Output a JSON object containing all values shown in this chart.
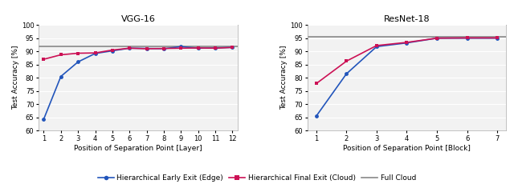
{
  "vgg16": {
    "title": "VGG-16",
    "xlabel": "Position of Separation Point [Layer]",
    "ylabel": "Test Accuracy [%]",
    "xlim": [
      1,
      12
    ],
    "ylim": [
      60,
      100
    ],
    "xticks": [
      1,
      2,
      3,
      4,
      5,
      6,
      7,
      8,
      9,
      10,
      11,
      12
    ],
    "yticks": [
      60,
      65,
      70,
      75,
      80,
      85,
      90,
      95,
      100
    ],
    "early_exit_x": [
      1,
      2,
      3,
      4,
      5,
      6,
      7,
      8,
      9,
      10,
      11,
      12
    ],
    "early_exit_y": [
      64.3,
      80.5,
      86.0,
      89.2,
      90.2,
      91.2,
      91.1,
      91.0,
      91.8,
      91.2,
      91.3,
      91.5
    ],
    "final_exit_x": [
      1,
      2,
      3,
      4,
      5,
      6,
      7,
      8,
      9,
      10,
      11,
      12
    ],
    "final_exit_y": [
      87.0,
      88.7,
      89.3,
      89.4,
      90.5,
      91.2,
      91.0,
      91.1,
      91.2,
      91.3,
      91.2,
      91.5
    ],
    "full_cloud": 91.8
  },
  "resnet18": {
    "title": "ResNet-18",
    "xlabel": "Position of Separation Point [Block]",
    "ylabel": "Test Accuracy [%]",
    "xlim": [
      1,
      7
    ],
    "ylim": [
      60,
      100
    ],
    "xticks": [
      1,
      2,
      3,
      4,
      5,
      6,
      7
    ],
    "yticks": [
      60,
      65,
      70,
      75,
      80,
      85,
      90,
      95,
      100
    ],
    "early_exit_x": [
      1,
      2,
      3,
      4,
      5,
      6,
      7
    ],
    "early_exit_y": [
      65.5,
      81.5,
      91.8,
      93.2,
      95.0,
      95.0,
      95.0
    ],
    "final_exit_x": [
      1,
      2,
      3,
      4,
      5,
      6,
      7
    ],
    "final_exit_y": [
      77.8,
      86.3,
      92.2,
      93.4,
      95.0,
      95.1,
      95.1
    ],
    "full_cloud": 95.4
  },
  "colors": {
    "early_exit": "#2255bb",
    "final_exit": "#cc1155",
    "full_cloud": "#888888"
  },
  "legend": {
    "early_exit_label": "Hierarchical Early Exit (Edge)",
    "final_exit_label": "Hierarchical Final Exit (Cloud)",
    "full_cloud_label": "Full Cloud"
  },
  "plot_bg": "#f2f2f2",
  "grid_color": "#ffffff",
  "spine_color": "#aaaaaa"
}
